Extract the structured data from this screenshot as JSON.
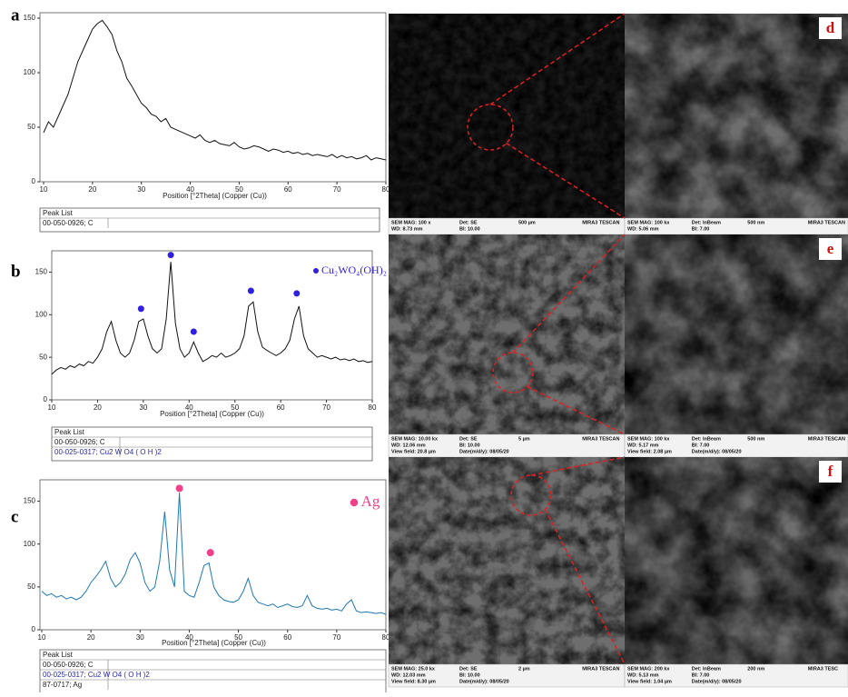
{
  "chart_data": [
    {
      "type": "line",
      "panel_label": "a",
      "x_label": "Position [°2Theta] (Copper (Cu))",
      "xlim": [
        10,
        80
      ],
      "xticks": [
        10,
        20,
        30,
        40,
        50,
        60,
        70,
        80
      ],
      "ylim": [
        0,
        155
      ],
      "yticks": [
        0,
        50,
        100,
        150
      ],
      "x": [
        10,
        11,
        12,
        13,
        14,
        15,
        16,
        17,
        18,
        19,
        20,
        21,
        22,
        23,
        24,
        25,
        26,
        27,
        28,
        29,
        30,
        31,
        32,
        33,
        34,
        35,
        36,
        37,
        38,
        39,
        40,
        41,
        42,
        43,
        44,
        45,
        46,
        47,
        48,
        49,
        50,
        51,
        52,
        53,
        54,
        55,
        56,
        57,
        58,
        59,
        60,
        61,
        62,
        63,
        64,
        65,
        66,
        67,
        68,
        69,
        70,
        71,
        72,
        73,
        74,
        75,
        76,
        77,
        78,
        79,
        80
      ],
      "series": [
        {
          "color": "#111111",
          "values": [
            45,
            55,
            50,
            60,
            70,
            80,
            95,
            110,
            120,
            130,
            140,
            145,
            148,
            142,
            135,
            120,
            110,
            95,
            88,
            80,
            72,
            68,
            62,
            60,
            55,
            58,
            50,
            48,
            46,
            44,
            42,
            40,
            43,
            38,
            36,
            38,
            35,
            34,
            33,
            36,
            32,
            30,
            31,
            33,
            32,
            30,
            28,
            30,
            29,
            27,
            28,
            26,
            27,
            25,
            26,
            24,
            25,
            24,
            23,
            25,
            22,
            24,
            22,
            23,
            21,
            22,
            24,
            20,
            22,
            21,
            20
          ]
        }
      ],
      "peak_list": {
        "title": "Peak List",
        "entries": [
          "00-050-0926; C"
        ]
      }
    },
    {
      "type": "line",
      "panel_label": "b",
      "x_label": "Position [°2Theta] (Copper (Cu))",
      "xlim": [
        10,
        80
      ],
      "xticks": [
        10,
        20,
        30,
        40,
        50,
        60,
        70,
        80
      ],
      "ylim": [
        0,
        175
      ],
      "yticks": [
        0,
        50,
        100,
        150
      ],
      "x": [
        10,
        11,
        12,
        13,
        14,
        15,
        16,
        17,
        18,
        19,
        20,
        21,
        22,
        23,
        24,
        25,
        26,
        27,
        28,
        29,
        30,
        31,
        32,
        33,
        34,
        35,
        36,
        37,
        38,
        39,
        40,
        41,
        42,
        43,
        44,
        45,
        46,
        47,
        48,
        49,
        50,
        51,
        52,
        53,
        54,
        55,
        56,
        57,
        58,
        59,
        60,
        61,
        62,
        63,
        64,
        65,
        66,
        67,
        68,
        69,
        70,
        71,
        72,
        73,
        74,
        75,
        76,
        77,
        78,
        79,
        80
      ],
      "series": [
        {
          "color": "#111111",
          "values": [
            30,
            35,
            38,
            36,
            40,
            38,
            42,
            40,
            45,
            43,
            50,
            60,
            80,
            92,
            70,
            55,
            50,
            55,
            70,
            92,
            95,
            75,
            60,
            55,
            60,
            95,
            162,
            90,
            60,
            50,
            55,
            68,
            55,
            45,
            48,
            52,
            50,
            55,
            50,
            52,
            55,
            60,
            75,
            110,
            115,
            80,
            62,
            58,
            55,
            52,
            55,
            60,
            70,
            95,
            110,
            75,
            60,
            55,
            50,
            52,
            50,
            48,
            50,
            47,
            48,
            46,
            48,
            45,
            46,
            44,
            45
          ]
        }
      ],
      "markers": {
        "name": "Cu₂WO₄(OH)₂",
        "color": "#2f1fe0",
        "x": [
          29.5,
          36,
          41,
          53.5,
          63.5
        ],
        "values": [
          107,
          170,
          80,
          128,
          125
        ]
      },
      "peak_list": {
        "title": "Peak List",
        "entries": [
          "00-050-0926; C",
          "00-025-0317; Cu2 W O4 ( O H )2"
        ]
      }
    },
    {
      "type": "line",
      "panel_label": "c",
      "x_label": "Position [°2Theta] (Copper (Cu))",
      "xlim": [
        10,
        80
      ],
      "xticks": [
        10,
        20,
        30,
        40,
        50,
        60,
        70,
        80
      ],
      "ylim": [
        0,
        175
      ],
      "yticks": [
        0,
        50,
        100,
        150
      ],
      "x": [
        10,
        11,
        12,
        13,
        14,
        15,
        16,
        17,
        18,
        19,
        20,
        21,
        22,
        23,
        24,
        25,
        26,
        27,
        28,
        29,
        30,
        31,
        32,
        33,
        34,
        35,
        36,
        37,
        38,
        39,
        40,
        41,
        42,
        43,
        44,
        45,
        46,
        47,
        48,
        49,
        50,
        51,
        52,
        53,
        54,
        55,
        56,
        57,
        58,
        59,
        60,
        61,
        62,
        63,
        64,
        65,
        66,
        67,
        68,
        69,
        70,
        71,
        72,
        73,
        74,
        75,
        76,
        77,
        78,
        79,
        80
      ],
      "series": [
        {
          "color": "#1f77b4",
          "values": [
            45,
            40,
            42,
            38,
            40,
            36,
            38,
            35,
            38,
            45,
            55,
            62,
            70,
            80,
            60,
            50,
            55,
            65,
            82,
            90,
            78,
            55,
            45,
            50,
            80,
            138,
            70,
            50,
            160,
            45,
            40,
            38,
            55,
            75,
            78,
            50,
            40,
            35,
            33,
            32,
            35,
            45,
            60,
            40,
            32,
            30,
            28,
            30,
            26,
            28,
            30,
            27,
            26,
            28,
            40,
            28,
            25,
            24,
            25,
            23,
            24,
            22,
            30,
            35,
            22,
            20,
            21,
            20,
            19,
            20,
            18
          ]
        }
      ],
      "markers": {
        "name": "Ag",
        "color": "#f0408a",
        "x": [
          38,
          44.3
        ],
        "values": [
          165,
          90
        ]
      },
      "peak_list": {
        "title": "Peak List",
        "entries": [
          "00-050-0926; C",
          "00-025-0317; Cu2 W O4 ( O H )2",
          "87-0717; Ag"
        ]
      }
    }
  ],
  "sem_panels": [
    {
      "label": "d",
      "left_info": [
        [
          "SEM MAG: 100 x",
          "WD: 8.73 mm"
        ],
        [
          "Det: SE",
          "BI: 10.00"
        ],
        [
          "500 µm"
        ],
        [
          "MIRA3 TESCAN"
        ]
      ],
      "right_info": [
        [
          "SEM MAG: 100 kx",
          "WD: 5.06 mm"
        ],
        [
          "Det: InBeam",
          "BI: 7.00"
        ],
        [
          "500 nm"
        ],
        [
          "MIRA3 TESCAN"
        ]
      ]
    },
    {
      "label": "e",
      "left_info": [
        [
          "SEM MAG: 10.00 kx",
          "WD: 12.06 mm",
          "View field: 20.8 µm"
        ],
        [
          "Det: SE",
          "BI: 10.00",
          "Date(m/d/y): 08/05/20"
        ],
        [
          "5 µm"
        ],
        [
          "MIRA3 TESCAN"
        ]
      ],
      "right_info": [
        [
          "SEM MAG: 100 kx",
          "WD: 5.17 mm",
          "View field: 2.08 µm"
        ],
        [
          "Det: InBeam",
          "BI: 7.00",
          "Date(m/d/y): 08/05/20"
        ],
        [
          "500 nm"
        ],
        [
          "MIRA3 TESCAN"
        ]
      ]
    },
    {
      "label": "f",
      "left_info": [
        [
          "SEM MAG: 25.0 kx",
          "WD: 12.03 mm",
          "View field: 8.30 µm"
        ],
        [
          "Det: SE",
          "BI: 10.00",
          "Date(m/d/y): 08/05/20"
        ],
        [
          "2 µm"
        ],
        [
          "MIRA3 TESCAN"
        ]
      ],
      "right_info": [
        [
          "SEM MAG: 200 kx",
          "WD: 5.13 mm",
          "View field: 1.04 µm"
        ],
        [
          "Det: InBeam",
          "BI: 7.00",
          "Date(m/d/y): 08/05/20"
        ],
        [
          "200 nm"
        ],
        [
          "MIRA3 TESC"
        ]
      ]
    }
  ]
}
